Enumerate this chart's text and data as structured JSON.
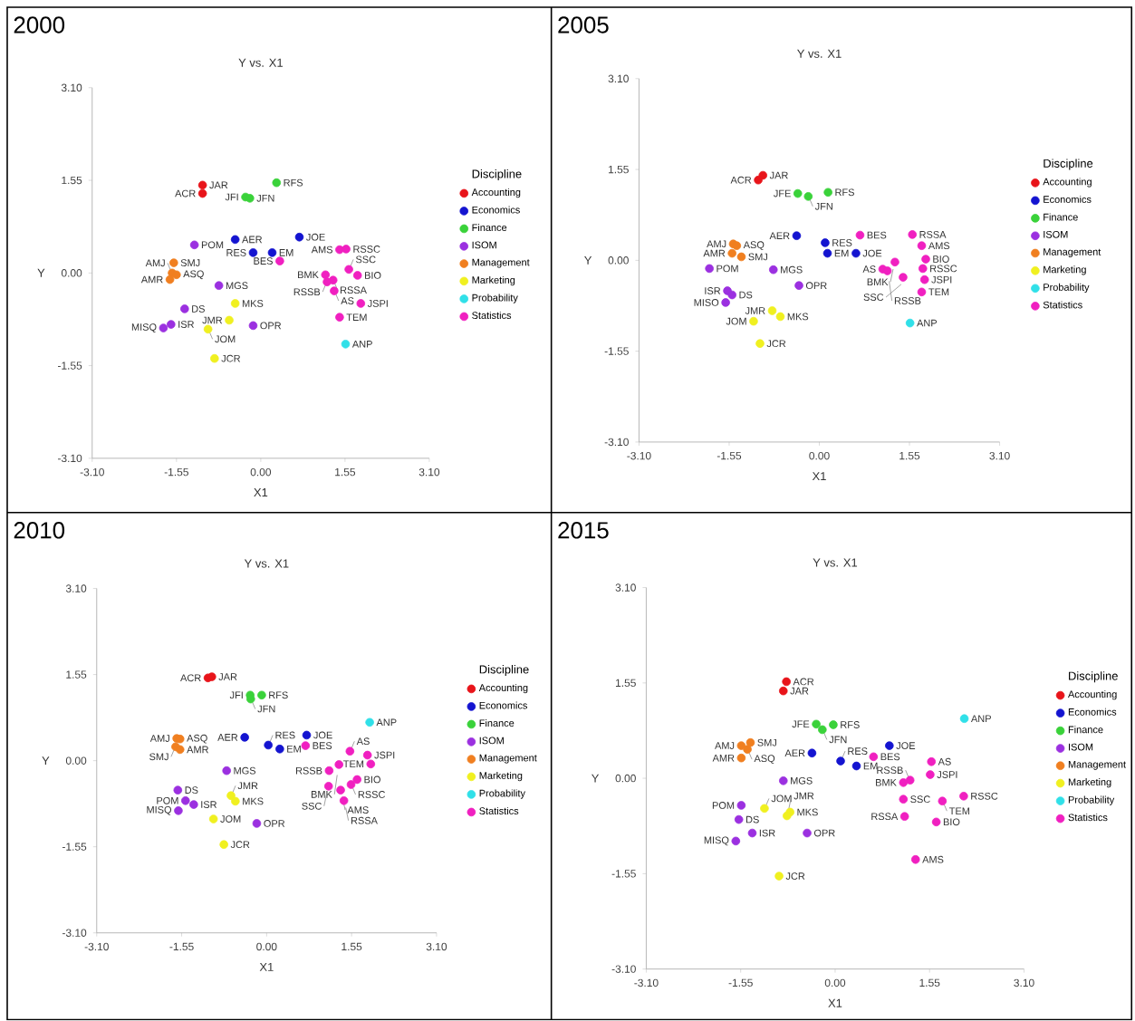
{
  "chart_data": [
    {
      "type": "scatter",
      "title": "2000",
      "subtitle": "Y vs. X1",
      "xlabel": "X1",
      "ylabel": "Y",
      "legend_title": "Discipline",
      "legend": "right",
      "marker": "circle",
      "xlim": [
        -3.1,
        3.1
      ],
      "ylim": [
        -3.1,
        3.1
      ],
      "xticks": [
        {
          "value": -3.1,
          "label": "-3.10"
        },
        {
          "value": -1.55,
          "label": "-1.55"
        },
        {
          "value": 0,
          "label": "0.00"
        },
        {
          "value": 1.55,
          "label": "1.55"
        },
        {
          "value": 3.1,
          "label": "3.10"
        }
      ],
      "yticks": [
        {
          "value": -3.1,
          "label": "-3.10"
        },
        {
          "value": -1.55,
          "label": "-1.55"
        },
        {
          "value": 0,
          "label": "0.00"
        },
        {
          "value": 1.55,
          "label": "1.55"
        },
        {
          "value": 3.1,
          "label": "3.10"
        }
      ],
      "series": [
        {
          "name": "Accounting",
          "color": "#e8141a",
          "x": [
            -1.07,
            -1.07
          ],
          "values": [
            1.47,
            1.33
          ]
        },
        {
          "name": "Economics",
          "color": "#1414d0",
          "x": [
            -0.47,
            0.71,
            -0.14,
            0.21
          ],
          "values": [
            0.56,
            0.6,
            0.34,
            0.34
          ]
        },
        {
          "name": "Finance",
          "color": "#3ad23a",
          "x": [
            0.29,
            -0.28,
            -0.2
          ],
          "values": [
            1.51,
            1.27,
            1.25
          ]
        },
        {
          "name": "ISOM",
          "color": "#9b30e0",
          "x": [
            -1.22,
            -0.77,
            -1.4,
            -1.65,
            -1.79,
            -0.14
          ],
          "values": [
            0.47,
            -0.21,
            -0.6,
            -0.86,
            -0.92,
            -0.88
          ]
        },
        {
          "name": "Management",
          "color": "#f07f20",
          "x": [
            -1.6,
            -1.63,
            -1.55,
            -1.67
          ],
          "values": [
            0.17,
            0.0,
            -0.03,
            -0.11
          ]
        },
        {
          "name": "Marketing",
          "color": "#f0f020",
          "x": [
            -0.47,
            -0.58,
            -0.97,
            -0.85
          ],
          "values": [
            -0.51,
            -0.79,
            -0.94,
            -1.43
          ]
        },
        {
          "name": "Probability",
          "color": "#30e0e8",
          "x": [
            1.56
          ],
          "values": [
            -1.19
          ]
        },
        {
          "name": "Statistics",
          "color": "#f020c0",
          "x": [
            0.35,
            1.45,
            1.57,
            1.62,
            1.19,
            1.33,
            1.22,
            1.78,
            1.35,
            1.84,
            1.45
          ],
          "values": [
            0.2,
            0.39,
            0.4,
            0.06,
            -0.03,
            -0.12,
            -0.15,
            -0.04,
            -0.3,
            -0.51,
            -0.74
          ]
        }
      ],
      "annotations": [
        {
          "text": "JAR",
          "x": -1.07,
          "y": 1.47
        },
        {
          "text": "ACR",
          "x": -1.07,
          "y": 1.33
        },
        {
          "text": "AER",
          "x": -0.47,
          "y": 0.56
        },
        {
          "text": "JOE",
          "x": 0.71,
          "y": 0.6
        },
        {
          "text": "RES",
          "x": -0.14,
          "y": 0.34
        },
        {
          "text": "EM",
          "x": 0.21,
          "y": 0.34
        },
        {
          "text": "RFS",
          "x": 0.29,
          "y": 1.51
        },
        {
          "text": "JFI",
          "x": -0.28,
          "y": 1.27
        },
        {
          "text": "JFN",
          "x": -0.2,
          "y": 1.25
        },
        {
          "text": "POM",
          "x": -1.22,
          "y": 0.47
        },
        {
          "text": "MGS",
          "x": -0.77,
          "y": -0.21
        },
        {
          "text": "DS",
          "x": -1.4,
          "y": -0.6
        },
        {
          "text": "ISR",
          "x": -1.65,
          "y": -0.86
        },
        {
          "text": "MISQ",
          "x": -1.79,
          "y": -0.92
        },
        {
          "text": "OPR",
          "x": -0.14,
          "y": -0.88
        },
        {
          "text": "SMJ",
          "x": -1.6,
          "y": 0.17
        },
        {
          "text": "AMJ",
          "x": -1.63,
          "y": 0.0
        },
        {
          "text": "ASQ",
          "x": -1.55,
          "y": -0.03
        },
        {
          "text": "AMR",
          "x": -1.67,
          "y": -0.11
        },
        {
          "text": "MKS",
          "x": -0.47,
          "y": -0.51
        },
        {
          "text": "JMR",
          "x": -0.58,
          "y": -0.79
        },
        {
          "text": "JOM",
          "x": -0.97,
          "y": -0.94
        },
        {
          "text": "JCR",
          "x": -0.85,
          "y": -1.43
        },
        {
          "text": "ANP",
          "x": 1.56,
          "y": -1.19
        },
        {
          "text": "BES",
          "x": 0.35,
          "y": 0.2
        },
        {
          "text": "AMS",
          "x": 1.45,
          "y": 0.39
        },
        {
          "text": "RSSC",
          "x": 1.57,
          "y": 0.4
        },
        {
          "text": "SSC",
          "x": 1.62,
          "y": 0.06
        },
        {
          "text": "BMK",
          "x": 1.19,
          "y": -0.03
        },
        {
          "text": "RSSA",
          "x": 1.33,
          "y": -0.12
        },
        {
          "text": "RSSB",
          "x": 1.22,
          "y": -0.15
        },
        {
          "text": "BIO",
          "x": 1.78,
          "y": -0.04
        },
        {
          "text": "AS",
          "x": 1.35,
          "y": -0.3
        },
        {
          "text": "JSPI",
          "x": 1.84,
          "y": -0.51
        },
        {
          "text": "TEM",
          "x": 1.45,
          "y": -0.74
        }
      ]
    },
    {
      "type": "scatter",
      "title": "2005",
      "subtitle": "Y vs. X1",
      "xlabel": "X1",
      "ylabel": "Y",
      "legend_title": "Discipline",
      "legend": "right",
      "marker": "circle",
      "xlim": [
        -3.1,
        3.1
      ],
      "ylim": [
        -3.1,
        3.1
      ],
      "xticks": [
        {
          "value": -3.1,
          "label": "-3.10"
        },
        {
          "value": -1.55,
          "label": "-1.55"
        },
        {
          "value": 0,
          "label": "0.00"
        },
        {
          "value": 1.55,
          "label": "1.55"
        },
        {
          "value": 3.1,
          "label": "3.10"
        }
      ],
      "yticks": [
        {
          "value": -3.1,
          "label": "-3.10"
        },
        {
          "value": -1.55,
          "label": "-1.55"
        },
        {
          "value": 0,
          "label": "0.00"
        },
        {
          "value": 1.55,
          "label": "1.55"
        },
        {
          "value": 3.1,
          "label": "3.10"
        }
      ],
      "series": [
        {
          "name": "Accounting",
          "color": "#e8141a",
          "x": [
            -0.97,
            -1.05
          ],
          "values": [
            1.45,
            1.37
          ]
        },
        {
          "name": "Economics",
          "color": "#1414d0",
          "x": [
            -0.39,
            0.1,
            0.14,
            0.63
          ],
          "values": [
            0.42,
            0.3,
            0.12,
            0.12
          ]
        },
        {
          "name": "Finance",
          "color": "#3ad23a",
          "x": [
            -0.37,
            -0.19,
            0.15
          ],
          "values": [
            1.14,
            1.09,
            1.16
          ]
        },
        {
          "name": "ISOM",
          "color": "#9b30e0",
          "x": [
            -1.89,
            -0.79,
            -0.35,
            -1.58,
            -1.5,
            -1.61
          ],
          "values": [
            -0.14,
            -0.16,
            -0.43,
            -0.52,
            -0.59,
            -0.72
          ]
        },
        {
          "name": "Management",
          "color": "#f07f20",
          "x": [
            -1.48,
            -1.42,
            -1.5,
            -1.34
          ],
          "values": [
            0.28,
            0.25,
            0.12,
            0.06
          ]
        },
        {
          "name": "Marketing",
          "color": "#f0f020",
          "x": [
            -0.81,
            -0.67,
            -1.13,
            -1.02
          ],
          "values": [
            -0.86,
            -0.96,
            -1.04,
            -1.42
          ]
        },
        {
          "name": "Probability",
          "color": "#30e0e8",
          "x": [
            1.56
          ],
          "values": [
            -1.07
          ]
        },
        {
          "name": "Statistics",
          "color": "#f020c0",
          "x": [
            0.7,
            1.6,
            1.76,
            1.83,
            1.3,
            1.78,
            1.09,
            1.17,
            1.44,
            1.81,
            1.76
          ],
          "values": [
            0.43,
            0.44,
            0.25,
            0.02,
            -0.03,
            -0.14,
            -0.15,
            -0.18,
            -0.29,
            -0.33,
            -0.54
          ]
        }
      ],
      "annotations": [
        {
          "text": "JAR",
          "x": -0.97,
          "y": 1.45
        },
        {
          "text": "ACR",
          "x": -1.05,
          "y": 1.37
        },
        {
          "text": "AER",
          "x": -0.39,
          "y": 0.42
        },
        {
          "text": "RES",
          "x": 0.1,
          "y": 0.3
        },
        {
          "text": "EM",
          "x": 0.14,
          "y": 0.12
        },
        {
          "text": "JOE",
          "x": 0.63,
          "y": 0.12
        },
        {
          "text": "JFE",
          "x": -0.37,
          "y": 1.14
        },
        {
          "text": "JFN",
          "x": -0.19,
          "y": 1.09
        },
        {
          "text": "RFS",
          "x": 0.15,
          "y": 1.16
        },
        {
          "text": "POM",
          "x": -1.89,
          "y": -0.14
        },
        {
          "text": "MGS",
          "x": -0.79,
          "y": -0.16
        },
        {
          "text": "OPR",
          "x": -0.35,
          "y": -0.43
        },
        {
          "text": "ISR",
          "x": -1.58,
          "y": -0.52
        },
        {
          "text": "DS",
          "x": -1.5,
          "y": -0.59
        },
        {
          "text": "MISO",
          "x": -1.61,
          "y": -0.72
        },
        {
          "text": "AMJ",
          "x": -1.48,
          "y": 0.28
        },
        {
          "text": "ASQ",
          "x": -1.42,
          "y": 0.25
        },
        {
          "text": "AMR",
          "x": -1.5,
          "y": 0.12
        },
        {
          "text": "SMJ",
          "x": -1.34,
          "y": 0.06
        },
        {
          "text": "JMR",
          "x": -0.81,
          "y": -0.86
        },
        {
          "text": "MKS",
          "x": -0.67,
          "y": -0.96
        },
        {
          "text": "JOM",
          "x": -1.13,
          "y": -1.04
        },
        {
          "text": "JCR",
          "x": -1.02,
          "y": -1.42
        },
        {
          "text": "ANP",
          "x": 1.56,
          "y": -1.07
        },
        {
          "text": "BES",
          "x": 0.7,
          "y": 0.43
        },
        {
          "text": "RSSA",
          "x": 1.6,
          "y": 0.44
        },
        {
          "text": "AMS",
          "x": 1.76,
          "y": 0.25
        },
        {
          "text": "BIO",
          "x": 1.83,
          "y": 0.02
        },
        {
          "text": "BMK",
          "x": 1.3,
          "y": -0.03
        },
        {
          "text": "RSSC",
          "x": 1.78,
          "y": -0.14
        },
        {
          "text": "AS",
          "x": 1.09,
          "y": -0.15
        },
        {
          "text": "RSSB",
          "x": 1.17,
          "y": -0.18
        },
        {
          "text": "SSC",
          "x": 1.44,
          "y": -0.29
        },
        {
          "text": "JSPI",
          "x": 1.81,
          "y": -0.33
        },
        {
          "text": "TEM",
          "x": 1.76,
          "y": -0.54
        }
      ]
    },
    {
      "type": "scatter",
      "title": "2010",
      "subtitle": "Y vs. X1",
      "xlabel": "X1",
      "ylabel": "Y",
      "legend_title": "Discipline",
      "legend": "right",
      "marker": "circle",
      "xlim": [
        -3.1,
        3.1
      ],
      "ylim": [
        -3.1,
        3.1
      ],
      "xticks": [
        {
          "value": -3.1,
          "label": "-3.10"
        },
        {
          "value": -1.55,
          "label": "-1.55"
        },
        {
          "value": 0,
          "label": "0.00"
        },
        {
          "value": 1.55,
          "label": "1.55"
        },
        {
          "value": 3.1,
          "label": "3.10"
        }
      ],
      "yticks": [
        {
          "value": -3.1,
          "label": "-3.10"
        },
        {
          "value": -1.55,
          "label": "-1.55"
        },
        {
          "value": 0,
          "label": "0.00"
        },
        {
          "value": 1.55,
          "label": "1.55"
        },
        {
          "value": 3.1,
          "label": "3.10"
        }
      ],
      "series": [
        {
          "name": "Accounting",
          "color": "#e8141a",
          "x": [
            -1.07,
            -1.0
          ],
          "values": [
            1.49,
            1.51
          ]
        },
        {
          "name": "Economics",
          "color": "#1414d0",
          "x": [
            -0.4,
            0.03,
            0.24,
            0.73
          ],
          "values": [
            0.42,
            0.28,
            0.21,
            0.46
          ]
        },
        {
          "name": "Finance",
          "color": "#3ad23a",
          "x": [
            -0.3,
            -0.29,
            -0.09
          ],
          "values": [
            1.18,
            1.11,
            1.18
          ]
        },
        {
          "name": "ISOM",
          "color": "#9b30e0",
          "x": [
            -0.73,
            -1.62,
            -1.48,
            -1.33,
            -1.61,
            -0.18
          ],
          "values": [
            -0.18,
            -0.53,
            -0.72,
            -0.79,
            -0.9,
            -1.13
          ]
        },
        {
          "name": "Management",
          "color": "#f07f20",
          "x": [
            -1.64,
            -1.58,
            -1.66,
            -1.58
          ],
          "values": [
            0.4,
            0.39,
            0.25,
            0.2
          ]
        },
        {
          "name": "Marketing",
          "color": "#f0f020",
          "x": [
            -0.65,
            -0.57,
            -0.97,
            -0.78
          ],
          "values": [
            -0.63,
            -0.73,
            -1.05,
            -1.51
          ]
        },
        {
          "name": "Probability",
          "color": "#30e0e8",
          "x": [
            1.88
          ],
          "values": [
            0.69
          ]
        },
        {
          "name": "Statistics",
          "color": "#f020c0",
          "x": [
            0.71,
            1.52,
            1.84,
            1.9,
            1.32,
            1.14,
            1.65,
            1.54,
            1.13,
            1.35,
            1.41
          ],
          "values": [
            0.27,
            0.17,
            0.1,
            -0.06,
            -0.07,
            -0.18,
            -0.34,
            -0.43,
            -0.46,
            -0.53,
            -0.72
          ]
        }
      ],
      "annotations": [
        {
          "text": "ACR",
          "x": -1.07,
          "y": 1.49
        },
        {
          "text": "JAR",
          "x": -1.0,
          "y": 1.51
        },
        {
          "text": "AER",
          "x": -0.4,
          "y": 0.42
        },
        {
          "text": "RES",
          "x": 0.03,
          "y": 0.28
        },
        {
          "text": "EM",
          "x": 0.24,
          "y": 0.21
        },
        {
          "text": "JOE",
          "x": 0.73,
          "y": 0.46
        },
        {
          "text": "JFI",
          "x": -0.3,
          "y": 1.18
        },
        {
          "text": "JFN",
          "x": -0.29,
          "y": 1.11
        },
        {
          "text": "RFS",
          "x": -0.09,
          "y": 1.18
        },
        {
          "text": "MGS",
          "x": -0.73,
          "y": -0.18
        },
        {
          "text": "DS",
          "x": -1.62,
          "y": -0.53
        },
        {
          "text": "POM",
          "x": -1.48,
          "y": -0.72
        },
        {
          "text": "ISR",
          "x": -1.33,
          "y": -0.79
        },
        {
          "text": "MISQ",
          "x": -1.61,
          "y": -0.9
        },
        {
          "text": "OPR",
          "x": -0.18,
          "y": -1.13
        },
        {
          "text": "AMJ",
          "x": -1.64,
          "y": 0.4
        },
        {
          "text": "ASQ",
          "x": -1.58,
          "y": 0.39
        },
        {
          "text": "SMJ",
          "x": -1.66,
          "y": 0.25
        },
        {
          "text": "AMR",
          "x": -1.58,
          "y": 0.2
        },
        {
          "text": "JMR",
          "x": -0.65,
          "y": -0.63
        },
        {
          "text": "MKS",
          "x": -0.57,
          "y": -0.73
        },
        {
          "text": "JOM",
          "x": -0.97,
          "y": -1.05
        },
        {
          "text": "JCR",
          "x": -0.78,
          "y": -1.51
        },
        {
          "text": "ANP",
          "x": 1.88,
          "y": 0.69
        },
        {
          "text": "BES",
          "x": 0.71,
          "y": 0.27
        },
        {
          "text": "AS",
          "x": 1.52,
          "y": 0.17
        },
        {
          "text": "JSPI",
          "x": 1.84,
          "y": 0.1
        },
        {
          "text": "TEM",
          "x": 1.9,
          "y": -0.06
        },
        {
          "text": "BMK",
          "x": 1.32,
          "y": -0.07
        },
        {
          "text": "RSSB",
          "x": 1.14,
          "y": -0.18
        },
        {
          "text": "BIO",
          "x": 1.65,
          "y": -0.34
        },
        {
          "text": "RSSC",
          "x": 1.54,
          "y": -0.43
        },
        {
          "text": "SSC",
          "x": 1.13,
          "y": -0.46
        },
        {
          "text": "AMS",
          "x": 1.35,
          "y": -0.53
        },
        {
          "text": "RSSA",
          "x": 1.41,
          "y": -0.72
        }
      ]
    },
    {
      "type": "scatter",
      "title": "2015",
      "subtitle": "Y vs. X1",
      "xlabel": "X1",
      "ylabel": "Y",
      "legend_title": "Discipline",
      "legend": "right",
      "marker": "circle",
      "xlim": [
        -3.1,
        3.1
      ],
      "ylim": [
        -3.1,
        3.1
      ],
      "xticks": [
        {
          "value": -3.1,
          "label": "-3.10"
        },
        {
          "value": -1.55,
          "label": "-1.55"
        },
        {
          "value": 0,
          "label": "0.00"
        },
        {
          "value": 1.55,
          "label": "1.55"
        },
        {
          "value": 3.1,
          "label": "3.10"
        }
      ],
      "yticks": [
        {
          "value": -3.1,
          "label": "-3.10"
        },
        {
          "value": -1.55,
          "label": "-1.55"
        },
        {
          "value": 0,
          "label": "0.00"
        },
        {
          "value": 1.55,
          "label": "1.55"
        },
        {
          "value": 3.1,
          "label": "3.10"
        }
      ],
      "series": [
        {
          "name": "Accounting",
          "color": "#e8141a",
          "x": [
            -0.8,
            -0.85
          ],
          "values": [
            1.57,
            1.42
          ]
        },
        {
          "name": "Economics",
          "color": "#1414d0",
          "x": [
            -0.38,
            0.09,
            0.35,
            0.89
          ],
          "values": [
            0.41,
            0.28,
            0.2,
            0.53
          ]
        },
        {
          "name": "Finance",
          "color": "#3ad23a",
          "x": [
            -0.31,
            -0.21,
            -0.03
          ],
          "values": [
            0.88,
            0.79,
            0.87
          ]
        },
        {
          "name": "ISOM",
          "color": "#9b30e0",
          "x": [
            -0.85,
            -1.54,
            -1.58,
            -1.36,
            -1.63,
            -0.46
          ],
          "values": [
            -0.04,
            -0.44,
            -0.67,
            -0.89,
            -1.02,
            -0.89
          ]
        },
        {
          "name": "Management",
          "color": "#f07f20",
          "x": [
            -1.54,
            -1.39,
            -1.44,
            -1.54
          ],
          "values": [
            0.53,
            0.58,
            0.47,
            0.33
          ]
        },
        {
          "name": "Marketing",
          "color": "#f0f020",
          "x": [
            -1.16,
            -0.74,
            -0.79,
            -0.92
          ],
          "values": [
            -0.49,
            -0.55,
            -0.61,
            -1.59
          ]
        },
        {
          "name": "Probability",
          "color": "#30e0e8",
          "x": [
            2.12
          ],
          "values": [
            0.97
          ]
        },
        {
          "name": "Statistics",
          "color": "#f020c0",
          "x": [
            0.63,
            1.58,
            1.56,
            1.23,
            1.12,
            1.12,
            1.76,
            2.11,
            1.14,
            1.66,
            1.32
          ],
          "values": [
            0.35,
            0.27,
            0.06,
            -0.03,
            -0.07,
            -0.34,
            -0.37,
            -0.29,
            -0.62,
            -0.71,
            -1.32
          ]
        }
      ],
      "annotations": [
        {
          "text": "ACR",
          "x": -0.8,
          "y": 1.57
        },
        {
          "text": "JAR",
          "x": -0.85,
          "y": 1.42
        },
        {
          "text": "AER",
          "x": -0.38,
          "y": 0.41
        },
        {
          "text": "RES",
          "x": 0.09,
          "y": 0.28
        },
        {
          "text": "EM",
          "x": 0.35,
          "y": 0.2
        },
        {
          "text": "JOE",
          "x": 0.89,
          "y": 0.53
        },
        {
          "text": "JFE",
          "x": -0.31,
          "y": 0.88
        },
        {
          "text": "JFN",
          "x": -0.21,
          "y": 0.79
        },
        {
          "text": "RFS",
          "x": -0.03,
          "y": 0.87
        },
        {
          "text": "MGS",
          "x": -0.85,
          "y": -0.04
        },
        {
          "text": "POM",
          "x": -1.54,
          "y": -0.44
        },
        {
          "text": "DS",
          "x": -1.58,
          "y": -0.67
        },
        {
          "text": "ISR",
          "x": -1.36,
          "y": -0.89
        },
        {
          "text": "MISQ",
          "x": -1.63,
          "y": -1.02
        },
        {
          "text": "OPR",
          "x": -0.46,
          "y": -0.89
        },
        {
          "text": "AMJ",
          "x": -1.54,
          "y": 0.53
        },
        {
          "text": "SMJ",
          "x": -1.39,
          "y": 0.58
        },
        {
          "text": "ASQ",
          "x": -1.44,
          "y": 0.47
        },
        {
          "text": "AMR",
          "x": -1.54,
          "y": 0.33
        },
        {
          "text": "JOM",
          "x": -1.16,
          "y": -0.49
        },
        {
          "text": "MKS",
          "x": -0.74,
          "y": -0.55
        },
        {
          "text": "JMR",
          "x": -0.79,
          "y": -0.61
        },
        {
          "text": "JCR",
          "x": -0.92,
          "y": -1.59
        },
        {
          "text": "ANP",
          "x": 2.12,
          "y": 0.97
        },
        {
          "text": "BES",
          "x": 0.63,
          "y": 0.35
        },
        {
          "text": "AS",
          "x": 1.58,
          "y": 0.27
        },
        {
          "text": "JSPI",
          "x": 1.56,
          "y": 0.06
        },
        {
          "text": "RSSB",
          "x": 1.23,
          "y": -0.03
        },
        {
          "text": "BMK",
          "x": 1.12,
          "y": -0.07
        },
        {
          "text": "SSC",
          "x": 1.12,
          "y": -0.34
        },
        {
          "text": "TEM",
          "x": 1.76,
          "y": -0.37
        },
        {
          "text": "RSSC",
          "x": 2.11,
          "y": -0.29
        },
        {
          "text": "RSSA",
          "x": 1.14,
          "y": -0.62
        },
        {
          "text": "BIO",
          "x": 1.66,
          "y": -0.71
        },
        {
          "text": "AMS",
          "x": 1.32,
          "y": -1.32
        }
      ]
    }
  ]
}
